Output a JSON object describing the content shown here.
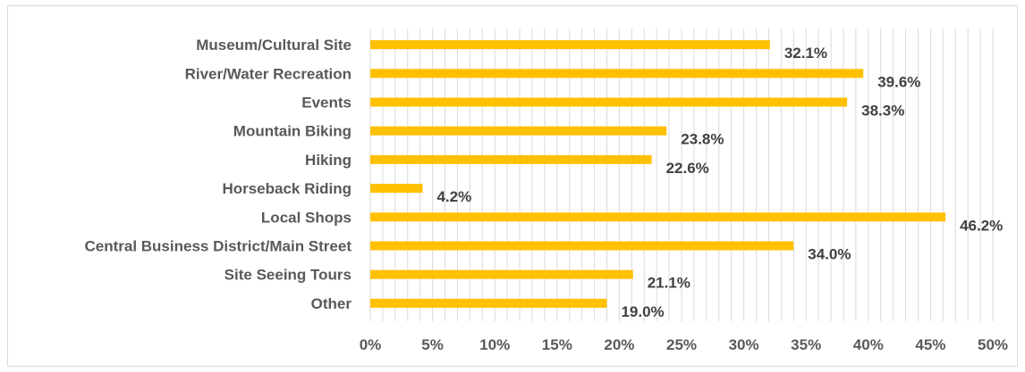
{
  "chart_data": {
    "type": "bar",
    "orientation": "horizontal",
    "categories": [
      "Museum/Cultural Site",
      "River/Water Recreation",
      "Events",
      "Mountain Biking",
      "Hiking",
      "Horseback Riding",
      "Local Shops",
      "Central Business District/Main Street",
      "Site Seeing Tours",
      "Other"
    ],
    "values": [
      32.1,
      39.6,
      38.3,
      23.8,
      22.6,
      4.2,
      46.2,
      34.0,
      21.1,
      19.0
    ],
    "data_labels": [
      "32.1%",
      "39.6%",
      "38.3%",
      "23.8%",
      "22.6%",
      "4.2%",
      "46.2%",
      "34.0%",
      "21.1%",
      "19.0%"
    ],
    "x_ticks": [
      "0%",
      "5%",
      "10%",
      "15%",
      "20%",
      "25%",
      "30%",
      "35%",
      "40%",
      "45%",
      "50%"
    ],
    "xlim": [
      0,
      50
    ],
    "minor_grid_step": 1,
    "grid": true,
    "bar_color": "#FFC000",
    "grid_color": "#d9d9d9"
  }
}
